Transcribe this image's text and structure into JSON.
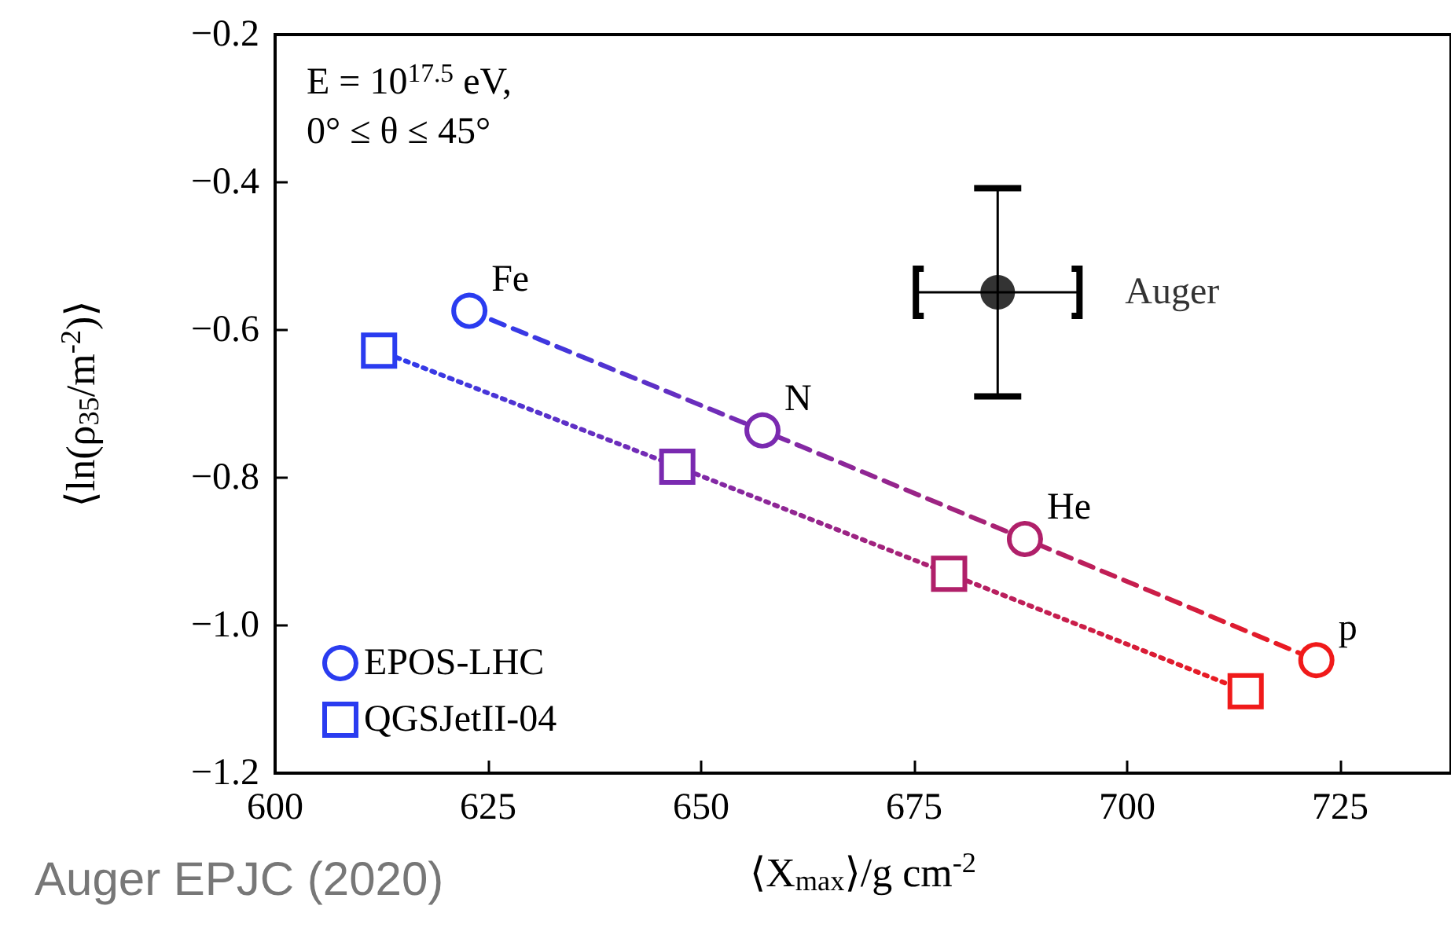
{
  "chart_data": {
    "type": "line",
    "xlabel": "⟨X$_{max}$⟩/g cm$^{-2}$",
    "ylabel": "⟨ln(ρ$_{35}$/m$^{-2}$)⟩",
    "xlim": [
      600,
      738
    ],
    "xticks": [
      600,
      625,
      650,
      675,
      700,
      725
    ],
    "ylim": [
      -1.2,
      -0.2
    ],
    "yticks": [
      {
        "value": -1.2,
        "label": "−1.2"
      },
      {
        "value": -1.0,
        "label": "−1.0"
      },
      {
        "value": -0.8,
        "label": "−0.8"
      },
      {
        "value": -0.6,
        "label": "−0.6"
      },
      {
        "value": -0.4,
        "label": "−0.4"
      },
      {
        "value": -0.2,
        "label": "−0.2"
      }
    ],
    "grid": false,
    "legend": "bottom left",
    "series": [
      {
        "name": "EPOS-LHC",
        "type": "line",
        "marker": "circle",
        "line_style": "dashed",
        "x": [
          622.8,
          657.2,
          688.0,
          722.2
        ],
        "values": [
          -0.574,
          -0.736,
          -0.883,
          -1.047
        ],
        "colors": [
          "#2a3cf0",
          "#7a2ab0",
          "#b0206a",
          "#f01a1a"
        ]
      },
      {
        "name": "QGSJetII-04",
        "type": "line",
        "marker": "square",
        "line_style": "dotted",
        "x": [
          612.2,
          647.2,
          679.1,
          713.9
        ],
        "values": [
          -0.628,
          -0.785,
          -0.93,
          -1.089
        ],
        "colors": [
          "#2a3cf0",
          "#7a2ab0",
          "#b0206a",
          "#f01a1a"
        ]
      },
      {
        "name": "Auger",
        "type": "scatter",
        "marker": "circle",
        "color": "#000000",
        "x": [
          684.8
        ],
        "values": [
          -0.549
        ],
        "errors": [
          0.141
        ],
        "xerrors": [
          9.6
        ]
      }
    ],
    "annotations": [
      "E = 10$^{17.5}$ eV,",
      "0° ≤ θ ≤ 45°",
      {
        "text": "Fe",
        "x": 622.8,
        "y": -0.574
      },
      {
        "text": "N",
        "x": 657.2,
        "y": -0.736
      },
      {
        "text": "He",
        "x": 688.0,
        "y": -0.883
      },
      {
        "text": "p",
        "x": 722.2,
        "y": -1.047
      },
      "Auger EPJC (2020)"
    ]
  }
}
